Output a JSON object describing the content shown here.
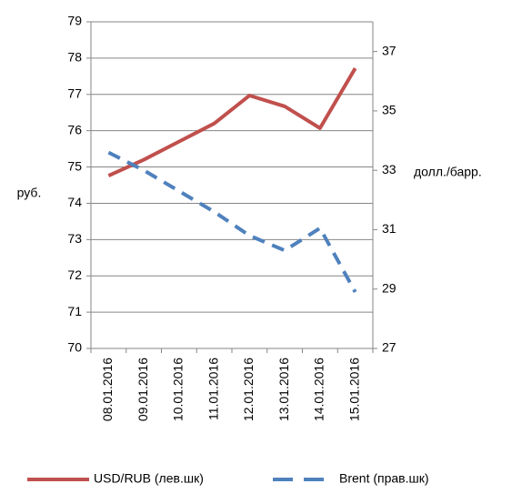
{
  "chart_data": {
    "type": "line",
    "categories": [
      "08.01.2016",
      "09.01.2016",
      "10.01.2016",
      "11.01.2016",
      "12.01.2016",
      "13.01.2016",
      "14.01.2016",
      "15.01.2016"
    ],
    "series": [
      {
        "name": "USD/RUB (лев.шк)",
        "color": "#c0504d",
        "values": [
          74.76,
          75.2,
          75.7,
          76.2,
          76.97,
          76.67,
          76.07,
          77.72
        ]
      },
      {
        "name": "Brent (прав.шк)",
        "color": "#4f81bd",
        "axis": "y2",
        "dashed": true,
        "values": [
          33.6,
          33.0,
          32.3,
          31.6,
          30.8,
          30.3,
          31.05,
          28.9
        ]
      }
    ],
    "ylabel": "руб.",
    "y2label": "долл./барр.",
    "ylim": [
      70,
      79
    ],
    "yticks": [
      70,
      71,
      72,
      73,
      74,
      75,
      76,
      77,
      78,
      79
    ],
    "y2lim": [
      27,
      38
    ],
    "y2ticks": [
      27,
      29,
      31,
      33,
      35,
      37
    ],
    "grid": true,
    "legend": "bottom"
  }
}
